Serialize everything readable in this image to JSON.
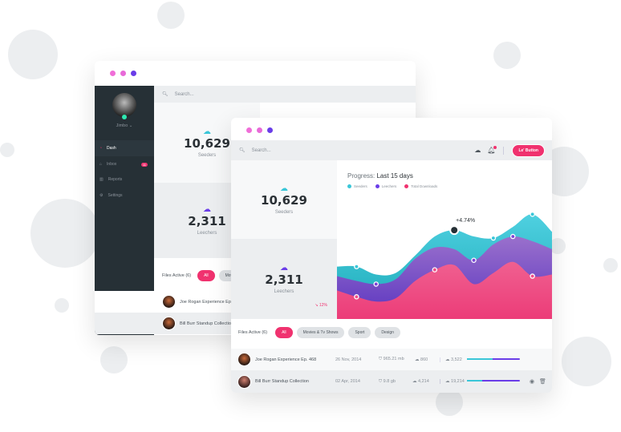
{
  "colors": {
    "pink": "#f0326f",
    "teal": "#3ac6d8",
    "purple": "#6a3de8",
    "sidebar": "#263036",
    "dot1": "#f06ed8",
    "dot2": "#e86ad8",
    "dot3": "#6a3de8"
  },
  "back_window": {
    "user": {
      "name": "Jimbo"
    },
    "sidebar": {
      "items": [
        {
          "label": "Dash",
          "icon": "dashboard-icon"
        },
        {
          "label": "Inbox",
          "icon": "inbox-icon",
          "badge": "11"
        },
        {
          "label": "Reports",
          "icon": "reports-icon"
        },
        {
          "label": "Settings",
          "icon": "gear-icon"
        }
      ]
    },
    "search": {
      "placeholder": "Search..."
    },
    "seeders": {
      "value": "10,629",
      "label": "Seeders"
    },
    "leechers": {
      "value": "2,311",
      "label": "Leechers"
    },
    "files": {
      "title": "Files Active (6)",
      "filters": [
        "All",
        "Movies"
      ]
    },
    "rows": [
      {
        "name": "Joe Rogan Experience Ep. 468"
      },
      {
        "name": "Bill Burr Standup Collection"
      }
    ]
  },
  "front_window": {
    "search": {
      "placeholder": "Search..."
    },
    "button_label": "Le' Button",
    "seeders": {
      "value": "10,629",
      "label": "Seeders"
    },
    "leechers": {
      "value": "2,311",
      "label": "Leechers",
      "change": "12%"
    },
    "files": {
      "title": "Files Active (6)",
      "filters": [
        "All",
        "Movies & Tv Shows",
        "Sport",
        "Design"
      ]
    },
    "rows": [
      {
        "name": "Joe Rogan Experience Ep. 468",
        "date": "26 Nov, 2014",
        "size": "965.21 mb",
        "down": "860",
        "up": "3,522",
        "progress_teal": 0.49,
        "progress_total": 1.0
      },
      {
        "name": "Bill Burr Standup Collection",
        "date": "02 Apr, 2014",
        "size": "9.8 gb",
        "down": "4,214",
        "up": "19,214",
        "progress_teal": 0.29,
        "progress_total": 1.0
      }
    ]
  },
  "chart_data": {
    "type": "area",
    "title_prefix": "Progress:",
    "title": "Last 15 days",
    "legend_placement": "top-left",
    "grid": false,
    "x": [
      0,
      1,
      2,
      3,
      4,
      5,
      6,
      7,
      8,
      9,
      10,
      11
    ],
    "ylim": [
      0,
      100
    ],
    "series": [
      {
        "name": "Seeders",
        "color": "#3ac6d8",
        "values": [
          33,
          33,
          28,
          29,
          40,
          52,
          56,
          52,
          51,
          58,
          66,
          55
        ],
        "markers": [
          1,
          8,
          10
        ]
      },
      {
        "name": "Leechers",
        "color": "#7b45d6",
        "values": [
          27,
          24,
          22,
          25,
          38,
          45,
          44,
          37,
          47,
          52,
          49,
          44
        ],
        "markers": [
          2,
          7,
          9
        ]
      },
      {
        "name": "Total Downloads",
        "color": "#f0508a",
        "values": [
          18,
          14,
          11,
          13,
          24,
          31,
          34,
          22,
          29,
          36,
          27,
          28
        ],
        "markers": [
          1,
          5,
          10
        ]
      }
    ],
    "annotation": {
      "label": "+4.74%",
      "series": 0,
      "index": 6
    }
  }
}
